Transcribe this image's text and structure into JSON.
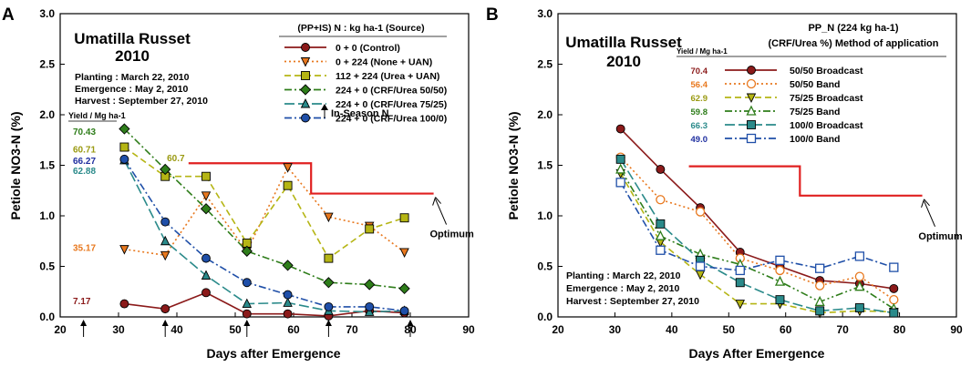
{
  "chart_data": [
    {
      "type": "line",
      "panel_label": "A",
      "title": "Umatilla Russet",
      "subtitle": "2010",
      "info_lines": [
        "Planting : March 22, 2010",
        "Emergence : May 2, 2010",
        "Harvest : September 27, 2010"
      ],
      "xlabel": "Days after Emergence",
      "ylabel": "Petiole NO3-N (%)",
      "xlim": [
        20,
        90
      ],
      "ylim": [
        0,
        3
      ],
      "xticks": [
        "20",
        "30",
        "40",
        "50",
        "60",
        "70",
        "80",
        "90"
      ],
      "yticks": [
        "0.0",
        "0.5",
        "1.0",
        "1.5",
        "2.0",
        "2.5",
        "3.0"
      ],
      "legend_title": "(PP+IS) N : kg ha-1 (Source)",
      "yield_header": "Yield / Mg ha-1",
      "series": [
        {
          "name": "0 + 0 (Control)",
          "color": "#8b1a1a",
          "marker": "circle",
          "dash": "solid",
          "x": [
            31,
            38,
            45,
            52,
            59,
            66,
            73,
            79
          ],
          "y": [
            0.13,
            0.08,
            0.24,
            0.03,
            0.03,
            0.01,
            0.06,
            0.04
          ]
        },
        {
          "name": "0 + 224 (None + UAN)",
          "color": "#e8781e",
          "marker": "triangle-down",
          "dash": "dot",
          "x": [
            31,
            38,
            45,
            52,
            59,
            66,
            73,
            79
          ],
          "y": [
            0.67,
            0.61,
            1.2,
            0.65,
            1.48,
            0.99,
            0.9,
            0.64
          ]
        },
        {
          "name": "112 + 224 (Urea + UAN)",
          "color": "#b5b514",
          "marker": "square",
          "dash": "dash",
          "x": [
            31,
            38,
            45,
            52,
            59,
            66,
            73,
            79
          ],
          "y": [
            1.68,
            1.39,
            1.39,
            0.73,
            1.3,
            0.58,
            0.87,
            0.98
          ]
        },
        {
          "name": "224 + 0 (CRF/Urea 50/50)",
          "color": "#2e7d1a",
          "marker": "diamond",
          "dash": "dashdot",
          "x": [
            31,
            38,
            45,
            52,
            59,
            66,
            73,
            79
          ],
          "y": [
            1.86,
            1.46,
            1.07,
            0.65,
            0.51,
            0.34,
            0.32,
            0.28
          ]
        },
        {
          "name": "224 + 0 (CRF/Urea 75/25)",
          "color": "#2a8a8a",
          "marker": "triangle-up",
          "dash": "longdash",
          "x": [
            31,
            38,
            45,
            52,
            59,
            66,
            73,
            79
          ],
          "y": [
            1.55,
            0.75,
            0.41,
            0.13,
            0.14,
            0.06,
            0.05,
            0.06
          ]
        },
        {
          "name": "224 + 0 (CRF/Urea 100/0)",
          "color": "#1f4fa8",
          "marker": "circle",
          "dash": "dashdot",
          "x": [
            31,
            38,
            45,
            52,
            59,
            66,
            73,
            79
          ],
          "y": [
            1.56,
            0.94,
            0.58,
            0.34,
            0.22,
            0.1,
            0.1,
            0.06
          ]
        }
      ],
      "optimum": {
        "label": "Optimum",
        "color": "#e02020",
        "segments": [
          {
            "x": [
              42,
              63
            ],
            "y": 1.52
          },
          {
            "x": [
              63,
              84
            ],
            "y": 1.22
          }
        ]
      },
      "in_season_label": "In-Season N",
      "in_season_x": [
        24,
        38,
        52,
        66,
        80
      ],
      "yield_labels": [
        {
          "text": "70.43",
          "y": 1.84,
          "color": "#2e7d1a"
        },
        {
          "text": "60.71",
          "y": 1.66,
          "color": "#9a9a12"
        },
        {
          "text": "66.27",
          "y": 1.55,
          "color": "#1f2fa0"
        },
        {
          "text": "62.88",
          "y": 1.45,
          "color": "#2a8a8a"
        },
        {
          "text": "35.17",
          "y": 0.69,
          "color": "#e8781e"
        },
        {
          "text": "7.17",
          "y": 0.16,
          "color": "#8b1a1a"
        }
      ],
      "extra_label": {
        "text": "60.7",
        "x": 38.3,
        "y": 1.54,
        "color": "#9a9a12"
      }
    },
    {
      "type": "line",
      "panel_label": "B",
      "title": "Umatilla Russet",
      "subtitle": "2010",
      "info_lines": [
        "Planting : March 22, 2010",
        "Emergence : May 2, 2010",
        "Harvest : September 27, 2010"
      ],
      "xlabel": "Days After Emergence",
      "ylabel": "Petiole NO3-N (%)",
      "xlim": [
        20,
        90
      ],
      "ylim": [
        0,
        3
      ],
      "xticks": [
        "20",
        "30",
        "40",
        "50",
        "60",
        "70",
        "80",
        "90"
      ],
      "yticks": [
        "0.0",
        "0.5",
        "1.0",
        "1.5",
        "2.0",
        "2.5",
        "3.0"
      ],
      "legend_title_1": "PP_N (224 kg ha-1)",
      "legend_title_2": "(CRF/Urea %) Method of application",
      "yield_header": "Yield / Mg ha-1",
      "series": [
        {
          "name": "50/50 Broadcast",
          "yield": "70.4",
          "yield_color": "#8b1a1a",
          "color": "#8b1a1a",
          "marker": "circle",
          "fill": "filled",
          "dash": "solid",
          "x": [
            31,
            38,
            45,
            52,
            59,
            66,
            73,
            79
          ],
          "y": [
            1.86,
            1.46,
            1.08,
            0.64,
            0.5,
            0.36,
            0.33,
            0.28
          ]
        },
        {
          "name": "50/50 Band",
          "yield": "56.4",
          "yield_color": "#e8781e",
          "color": "#e8781e",
          "marker": "circle",
          "fill": "open",
          "dash": "dot",
          "x": [
            31,
            38,
            45,
            52,
            59,
            66,
            73,
            79
          ],
          "y": [
            1.58,
            1.16,
            1.04,
            0.58,
            0.46,
            0.31,
            0.4,
            0.17
          ]
        },
        {
          "name": "75/25 Broadcast",
          "yield": "62.9",
          "yield_color": "#9a9a12",
          "color": "#b5b514",
          "marker": "triangle-down",
          "fill": "filled",
          "dash": "dash",
          "x": [
            31,
            38,
            45,
            52,
            59,
            66,
            73,
            79
          ],
          "y": [
            1.42,
            0.74,
            0.42,
            0.13,
            0.13,
            0.04,
            0.06,
            0.05
          ]
        },
        {
          "name": "75/25 Band",
          "yield": "59.8",
          "yield_color": "#2e7d1a",
          "color": "#2e7d1a",
          "marker": "triangle-up",
          "fill": "open",
          "dash": "dashdotdot",
          "x": [
            31,
            38,
            45,
            52,
            59,
            66,
            73,
            79
          ],
          "y": [
            1.46,
            0.8,
            0.62,
            0.52,
            0.35,
            0.15,
            0.3,
            0.08
          ]
        },
        {
          "name": "100/0 Broadcast",
          "yield": "66.3",
          "yield_color": "#2a8a8a",
          "color": "#2a8a8a",
          "marker": "square",
          "fill": "filled",
          "dash": "longdash",
          "x": [
            31,
            38,
            45,
            52,
            59,
            66,
            73,
            79
          ],
          "y": [
            1.56,
            0.92,
            0.56,
            0.34,
            0.17,
            0.06,
            0.09,
            0.04
          ]
        },
        {
          "name": "100/0 Band",
          "yield": "49.0",
          "yield_color": "#1f2fa0",
          "color": "#1f4fa8",
          "marker": "square",
          "fill": "open",
          "dash": "dashdot",
          "x": [
            31,
            38,
            45,
            52,
            59,
            66,
            73,
            79
          ],
          "y": [
            1.33,
            0.66,
            0.5,
            0.46,
            0.56,
            0.48,
            0.6,
            0.49
          ]
        }
      ],
      "optimum": {
        "label": "Optimum",
        "color": "#e02020",
        "segments": [
          {
            "x": [
              43,
              62.5
            ],
            "y": 1.49
          },
          {
            "x": [
              62.5,
              84
            ],
            "y": 1.2
          }
        ]
      }
    }
  ]
}
